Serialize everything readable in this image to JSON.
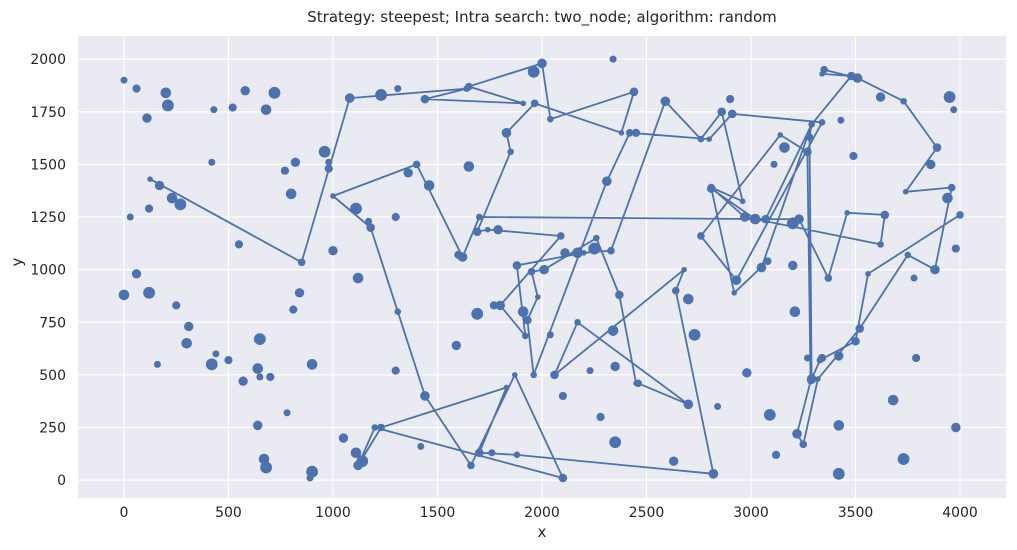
{
  "chart_data": {
    "type": "scatter",
    "title": "Strategy: steepest; Intra search: two_node; algorithm: random",
    "xlabel": "x",
    "ylabel": "y",
    "xlim": [
      -220,
      4220
    ],
    "ylim": [
      -85,
      2110
    ],
    "xticks": [
      0,
      500,
      1000,
      1500,
      2000,
      2500,
      3000,
      3500,
      4000
    ],
    "yticks": [
      0,
      250,
      500,
      750,
      1000,
      1250,
      1500,
      1750,
      2000
    ],
    "grid": true,
    "color": "#4c72b0",
    "route": [
      [
        125,
        1430
      ],
      [
        850,
        1035
      ],
      [
        1080,
        1815
      ],
      [
        1640,
        1860
      ],
      [
        1440,
        1810
      ],
      [
        1910,
        1790
      ],
      [
        1650,
        1870
      ],
      [
        2000,
        1980
      ],
      [
        2040,
        1715
      ],
      [
        2440,
        1845
      ],
      [
        2380,
        1650
      ],
      [
        1965,
        1790
      ],
      [
        1830,
        1650
      ],
      [
        1850,
        1560
      ],
      [
        1690,
        1180
      ],
      [
        1740,
        1190
      ],
      [
        2090,
        1160
      ],
      [
        1800,
        830
      ],
      [
        1920,
        685
      ],
      [
        1880,
        1020
      ],
      [
        2200,
        1080
      ],
      [
        2330,
        1090
      ],
      [
        2590,
        1800
      ],
      [
        2760,
        1620
      ],
      [
        2860,
        1750
      ],
      [
        2960,
        1325
      ],
      [
        2810,
        1390
      ],
      [
        2970,
        1250
      ],
      [
        3620,
        1120
      ],
      [
        3640,
        1260
      ],
      [
        3460,
        1270
      ],
      [
        3370,
        960
      ],
      [
        3230,
        1240
      ],
      [
        3020,
        1240
      ],
      [
        2810,
        1385
      ],
      [
        2920,
        890
      ],
      [
        3080,
        1040
      ],
      [
        3050,
        1010
      ],
      [
        3290,
        1690
      ],
      [
        3480,
        1920
      ],
      [
        3340,
        1930
      ],
      [
        3350,
        1950
      ],
      [
        3510,
        1910
      ],
      [
        3730,
        1800
      ],
      [
        3890,
        1580
      ],
      [
        3740,
        1370
      ],
      [
        3960,
        1390
      ],
      [
        3880,
        1000
      ],
      [
        3750,
        1070
      ],
      [
        3520,
        720
      ],
      [
        3320,
        480
      ],
      [
        3250,
        170
      ],
      [
        3220,
        220
      ],
      [
        3285,
        470
      ],
      [
        3270,
        1560
      ],
      [
        3140,
        1640
      ],
      [
        2760,
        1160
      ],
      [
        2930,
        950
      ],
      [
        3340,
        1700
      ],
      [
        2910,
        1740
      ],
      [
        2800,
        1620
      ],
      [
        2420,
        1650
      ],
      [
        2310,
        1420
      ],
      [
        1960,
        500
      ],
      [
        1930,
        760
      ],
      [
        1980,
        870
      ],
      [
        1950,
        990
      ],
      [
        2010,
        1000
      ],
      [
        2260,
        1150
      ],
      [
        2370,
        880
      ],
      [
        2450,
        460
      ],
      [
        2460,
        460
      ],
      [
        2700,
        360
      ],
      [
        2170,
        750
      ],
      [
        2060,
        500
      ],
      [
        2680,
        1000
      ],
      [
        2640,
        900
      ],
      [
        2820,
        30
      ],
      [
        1880,
        120
      ],
      [
        1700,
        130
      ],
      [
        1830,
        440
      ],
      [
        1230,
        250
      ],
      [
        1120,
        70
      ],
      [
        1200,
        250
      ],
      [
        2100,
        10
      ],
      [
        1870,
        500
      ],
      [
        1660,
        70
      ],
      [
        1440,
        400
      ],
      [
        1310,
        800
      ],
      [
        1180,
        1200
      ],
      [
        1000,
        1350
      ],
      [
        1400,
        1500
      ],
      [
        1620,
        1060
      ],
      [
        1700,
        1250
      ],
      [
        3070,
        1240
      ],
      [
        3290,
        1690
      ],
      [
        3280,
        1630
      ],
      [
        3290,
        480
      ],
      [
        3330,
        570
      ],
      [
        3500,
        660
      ],
      [
        3560,
        980
      ],
      [
        4000,
        1260
      ]
    ],
    "points": [
      [
        0,
        1900
      ],
      [
        60,
        1860
      ],
      [
        110,
        1720
      ],
      [
        200,
        1840
      ],
      [
        210,
        1780
      ],
      [
        430,
        1760
      ],
      [
        520,
        1770
      ],
      [
        580,
        1850
      ],
      [
        680,
        1760
      ],
      [
        720,
        1840
      ],
      [
        30,
        1250
      ],
      [
        120,
        1290
      ],
      [
        170,
        1400
      ],
      [
        230,
        1340
      ],
      [
        270,
        1310
      ],
      [
        420,
        1510
      ],
      [
        550,
        1120
      ],
      [
        60,
        980
      ],
      [
        0,
        880
      ],
      [
        120,
        890
      ],
      [
        160,
        550
      ],
      [
        250,
        830
      ],
      [
        310,
        730
      ],
      [
        300,
        650
      ],
      [
        420,
        550
      ],
      [
        440,
        600
      ],
      [
        500,
        570
      ],
      [
        570,
        470
      ],
      [
        640,
        530
      ],
      [
        650,
        670
      ],
      [
        650,
        490
      ],
      [
        700,
        490
      ],
      [
        640,
        260
      ],
      [
        670,
        100
      ],
      [
        680,
        60
      ],
      [
        780,
        320
      ],
      [
        810,
        810
      ],
      [
        840,
        890
      ],
      [
        900,
        550
      ],
      [
        900,
        40
      ],
      [
        890,
        10
      ],
      [
        770,
        1470
      ],
      [
        820,
        1510
      ],
      [
        800,
        1360
      ],
      [
        960,
        1560
      ],
      [
        980,
        1510
      ],
      [
        980,
        1480
      ],
      [
        1000,
        1090
      ],
      [
        1120,
        960
      ],
      [
        1110,
        1290
      ],
      [
        1170,
        1230
      ],
      [
        1300,
        1250
      ],
      [
        1360,
        1460
      ],
      [
        1460,
        1400
      ],
      [
        1230,
        1830
      ],
      [
        1310,
        1860
      ],
      [
        1300,
        520
      ],
      [
        1050,
        200
      ],
      [
        1110,
        130
      ],
      [
        1140,
        90
      ],
      [
        1420,
        160
      ],
      [
        1600,
        1070
      ],
      [
        1590,
        640
      ],
      [
        1650,
        1490
      ],
      [
        1690,
        790
      ],
      [
        1760,
        130
      ],
      [
        1770,
        830
      ],
      [
        1790,
        1190
      ],
      [
        1910,
        800
      ],
      [
        1960,
        1940
      ],
      [
        2040,
        690
      ],
      [
        2100,
        400
      ],
      [
        2110,
        1080
      ],
      [
        2170,
        1080
      ],
      [
        2250,
        1100
      ],
      [
        2230,
        520
      ],
      [
        2280,
        300
      ],
      [
        2350,
        540
      ],
      [
        2340,
        710
      ],
      [
        2350,
        180
      ],
      [
        2340,
        2000
      ],
      [
        2450,
        1650
      ],
      [
        2630,
        90
      ],
      [
        2700,
        860
      ],
      [
        2730,
        690
      ],
      [
        2840,
        350
      ],
      [
        2900,
        1810
      ],
      [
        2980,
        510
      ],
      [
        3020,
        1240
      ],
      [
        3090,
        310
      ],
      [
        3110,
        1500
      ],
      [
        3120,
        120
      ],
      [
        3200,
        1020
      ],
      [
        3210,
        800
      ],
      [
        3200,
        1220
      ],
      [
        3270,
        580
      ],
      [
        3340,
        580
      ],
      [
        3420,
        590
      ],
      [
        3420,
        260
      ],
      [
        3420,
        30
      ],
      [
        3430,
        1710
      ],
      [
        3490,
        1540
      ],
      [
        3620,
        1820
      ],
      [
        3680,
        380
      ],
      [
        3730,
        100
      ],
      [
        3780,
        960
      ],
      [
        3790,
        580
      ],
      [
        3860,
        1500
      ],
      [
        3940,
        1340
      ],
      [
        3950,
        1820
      ],
      [
        3970,
        1760
      ],
      [
        3980,
        1100
      ],
      [
        3980,
        250
      ],
      [
        3160,
        1580
      ]
    ]
  }
}
